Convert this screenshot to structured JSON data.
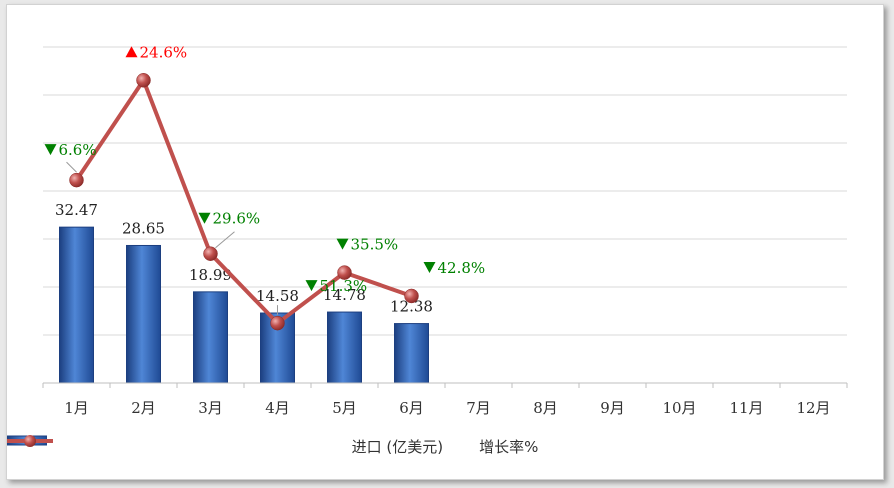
{
  "chart_data": {
    "type": "bar+line",
    "categories": [
      "1月",
      "2月",
      "3月",
      "4月",
      "5月",
      "6月",
      "7月",
      "8月",
      "9月",
      "10月",
      "11月",
      "12月"
    ],
    "series": [
      {
        "name": "进口 (亿美元)",
        "type": "bar",
        "values": [
          32.47,
          28.65,
          18.99,
          14.58,
          14.78,
          12.38,
          null,
          null,
          null,
          null,
          null,
          null
        ]
      },
      {
        "name": "增长率%",
        "type": "line",
        "values": [
          -6.6,
          24.6,
          -29.6,
          -51.3,
          -35.5,
          -42.8,
          null,
          null,
          null,
          null,
          null,
          null
        ],
        "labels": [
          "6.6%",
          "24.6%",
          "29.6%",
          "51.3%",
          "35.5%",
          "42.8%"
        ],
        "directions": [
          "down",
          "up",
          "down",
          "down",
          "down",
          "down"
        ]
      }
    ],
    "bar_labels": [
      "32.47",
      "28.65",
      "18.99",
      "14.58",
      "14.78",
      "12.38"
    ],
    "y_left_range": [
      0,
      70
    ],
    "y_right_range": [
      -70,
      35
    ],
    "grid": "horizontal",
    "axis_tick_labels_shown": false,
    "legend_position": "bottom",
    "colors": {
      "bar": "#2e63b5",
      "bar_dark": "#1c3f80",
      "line": "#c0504d",
      "up": "#ff0000",
      "down": "#008000",
      "grid": "#d9d9d9"
    }
  },
  "legend": {
    "bar_label": "进口 (亿美元)",
    "line_label": "增长率%"
  }
}
